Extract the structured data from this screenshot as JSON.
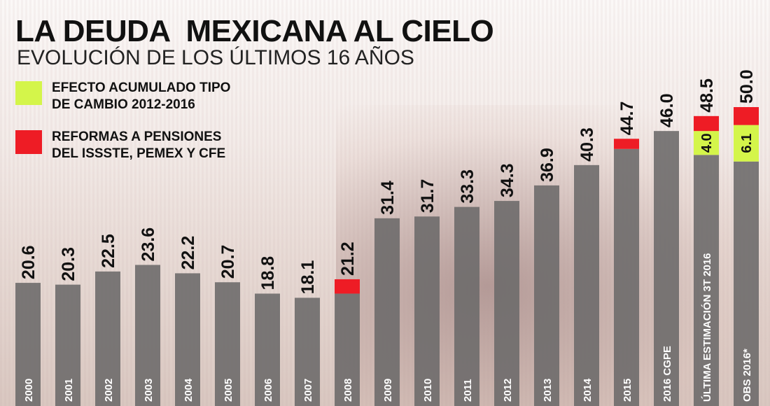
{
  "title": "LA DEUDA  MEXICANA AL CIELO",
  "subtitle": "EVOLUCIÓN DE LOS ÚLTIMOS 16 AÑOS",
  "legend": [
    {
      "label_line1": "EFECTO ACUMULADO TIPO",
      "label_line2": "DE CAMBIO 2012-2016",
      "color": "#d4f54a"
    },
    {
      "label_line1": "REFORMAS A PENSIONES",
      "label_line2": "DEL ISSSTE, PEMEX Y CFE",
      "color": "#ee1c25"
    }
  ],
  "chart_data": {
    "type": "bar",
    "stacked": true,
    "categories": [
      "2000",
      "2001",
      "2002",
      "2003",
      "2004",
      "2005",
      "2006",
      "2007",
      "2008",
      "2009",
      "2010",
      "2011",
      "2012",
      "2013",
      "2014",
      "2015",
      "2016 CGPE",
      "ÚLTIMA ESTIMACIÓN 3T 2016",
      "OBS 2016*"
    ],
    "totals": [
      20.6,
      20.3,
      22.5,
      23.6,
      22.2,
      20.7,
      18.8,
      18.1,
      21.2,
      31.4,
      31.7,
      33.3,
      34.3,
      36.9,
      40.3,
      44.7,
      46.0,
      48.5,
      50.0
    ],
    "series": [
      {
        "key": "base",
        "color": "#6e6b6b",
        "values": [
          20.6,
          20.3,
          22.5,
          23.6,
          22.2,
          20.7,
          18.8,
          18.1,
          18.8,
          31.4,
          31.7,
          33.3,
          34.3,
          36.9,
          40.3,
          43.0,
          46.0,
          42.0,
          40.9
        ]
      },
      {
        "key": "fx",
        "name": "EFECTO ACUMULADO TIPO DE CAMBIO 2012-2016",
        "color": "#d4f54a",
        "values": [
          0,
          0,
          0,
          0,
          0,
          0,
          0,
          0,
          0,
          0,
          0,
          0,
          0,
          0,
          0,
          0,
          0,
          4.0,
          6.1
        ],
        "labels": [
          "",
          "",
          "",
          "",
          "",
          "",
          "",
          "",
          "",
          "",
          "",
          "",
          "",
          "",
          "",
          "",
          "",
          "4.0",
          "6.1"
        ]
      },
      {
        "key": "reformas",
        "name": "REFORMAS A PENSIONES DEL ISSSTE, PEMEX Y CFE",
        "color": "#ee1c25",
        "values": [
          0,
          0,
          0,
          0,
          0,
          0,
          0,
          0,
          2.4,
          0,
          0,
          0,
          0,
          0,
          0,
          1.7,
          0,
          2.5,
          3.0
        ]
      }
    ],
    "ylim": [
      0,
      68
    ],
    "grid": false,
    "legend_placement": "top-left"
  }
}
